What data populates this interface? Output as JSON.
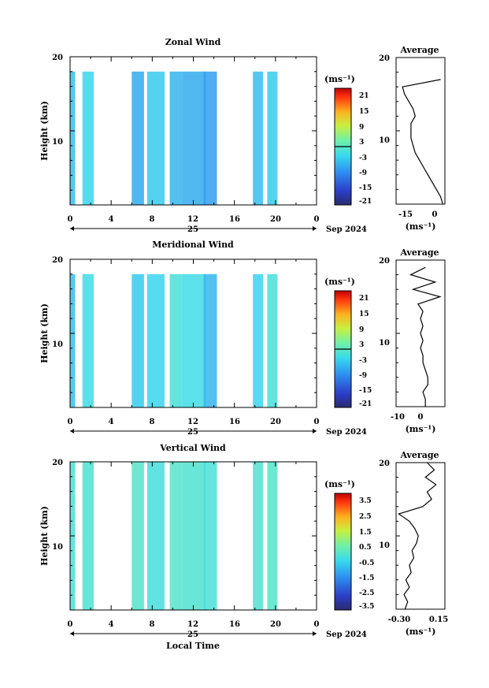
{
  "chart_data": [
    {
      "type": "heatmap",
      "title": "Zonal Wind",
      "ylabel": "Height (km)",
      "xlabel": "",
      "xlim": [
        0,
        24
      ],
      "ylim": [
        0,
        20
      ],
      "xticks": [
        "0",
        "4",
        "8",
        "12",
        "16",
        "20",
        "0"
      ],
      "yticks": [
        "20",
        "10"
      ],
      "date_day": "25",
      "date_month": "Sep 2024",
      "colorbar": {
        "unit": "(ms⁻¹)",
        "range": [
          -24,
          24
        ],
        "ticks": [
          "21",
          "15",
          "9",
          "3",
          "-3",
          "-9",
          "-15",
          "-21"
        ]
      },
      "time_blocks_hours": [
        [
          0,
          0.5
        ],
        [
          1.2,
          2.3
        ],
        [
          6,
          7.2
        ],
        [
          7.5,
          9.2
        ],
        [
          9.7,
          10.9
        ],
        [
          10.9,
          13.2
        ],
        [
          13,
          14.3
        ],
        [
          17.8,
          18.8
        ],
        [
          19.2,
          20.2
        ]
      ],
      "fill_values": [
        -6,
        -4,
        -8,
        -5,
        -7,
        -8,
        -9,
        -6,
        -5
      ],
      "average_profile": {
        "title": "Average",
        "xlabel": "(ms⁻¹)",
        "xlim": [
          -20,
          3
        ],
        "xticks": [
          "-15",
          "0"
        ],
        "yticks": [
          "20",
          "10"
        ],
        "height_km": [
          0,
          1,
          2,
          3,
          4,
          5,
          6,
          7,
          8,
          9,
          10,
          11,
          12,
          13,
          14,
          15,
          16,
          17
        ],
        "values": [
          2,
          1,
          -1,
          -3,
          -5,
          -7,
          -9,
          -11,
          -12,
          -13,
          -13,
          -13,
          -11,
          -12,
          -14,
          -16,
          -17,
          1
        ]
      }
    },
    {
      "type": "heatmap",
      "title": "Meridional Wind",
      "ylabel": "Height (km)",
      "xlabel": "",
      "xlim": [
        0,
        24
      ],
      "ylim": [
        0,
        20
      ],
      "xticks": [
        "0",
        "4",
        "8",
        "12",
        "16",
        "20",
        "0"
      ],
      "yticks": [
        "20",
        "10"
      ],
      "date_day": "25",
      "date_month": "Sep 2024",
      "colorbar": {
        "unit": "(ms⁻¹)",
        "range": [
          -24,
          24
        ],
        "ticks": [
          "21",
          "15",
          "9",
          "3",
          "-3",
          "-9",
          "-15",
          "-21"
        ]
      },
      "time_blocks_hours": [
        [
          0,
          0.5
        ],
        [
          1.2,
          2.3
        ],
        [
          6,
          7.2
        ],
        [
          7.5,
          9.2
        ],
        [
          9.7,
          10.9
        ],
        [
          10.9,
          13.2
        ],
        [
          13,
          14.3
        ],
        [
          17.8,
          18.8
        ],
        [
          19.2,
          20.2
        ]
      ],
      "fill_values": [
        -6,
        -3,
        -5,
        -4,
        -2,
        -3,
        -7,
        -4,
        -2
      ],
      "average_profile": {
        "title": "Average",
        "xlabel": "(ms⁻¹)",
        "xlim": [
          -12,
          8
        ],
        "xticks": [
          "-10",
          "0"
        ],
        "yticks": [
          "20",
          "10"
        ],
        "height_km": [
          0,
          1,
          2,
          3,
          4,
          5,
          6,
          7,
          8,
          9,
          10,
          11,
          12,
          13,
          14,
          15,
          16,
          17,
          18,
          19
        ],
        "values": [
          0,
          0,
          -1,
          1,
          1,
          0,
          -1,
          -1,
          -2,
          -1,
          -2,
          -1,
          -2,
          -1,
          -3,
          6,
          -5,
          4,
          -6,
          0
        ]
      }
    },
    {
      "type": "heatmap",
      "title": "Vertical Wind",
      "ylabel": "Height (km)",
      "xlabel": "Local Time",
      "xlim": [
        0,
        24
      ],
      "ylim": [
        0,
        20
      ],
      "xticks": [
        "0",
        "4",
        "8",
        "12",
        "16",
        "20",
        "0"
      ],
      "yticks": [
        "20",
        "10"
      ],
      "date_day": "25",
      "date_month": "Sep 2024",
      "colorbar": {
        "unit": "(ms⁻¹)",
        "range": [
          -4,
          4
        ],
        "ticks": [
          "3.5",
          "2.5",
          "1.5",
          "0.5",
          "-0.5",
          "-1.5",
          "-2.5",
          "-3.5"
        ]
      },
      "time_blocks_hours": [
        [
          0,
          0.5
        ],
        [
          1.2,
          2.3
        ],
        [
          6,
          7.2
        ],
        [
          7.5,
          9.2
        ],
        [
          9.7,
          10.9
        ],
        [
          10.9,
          13.2
        ],
        [
          13,
          14.3
        ],
        [
          17.8,
          18.8
        ],
        [
          19.2,
          20.2
        ]
      ],
      "fill_values": [
        -0.3,
        -0.2,
        -0.1,
        -0.4,
        -0.1,
        -0.2,
        -0.3,
        -0.2,
        -0.1
      ],
      "average_profile": {
        "title": "Average",
        "xlabel": "(ms⁻¹)",
        "xlim": [
          -0.35,
          0.2
        ],
        "xticks": [
          "-0.30",
          "0.15"
        ],
        "yticks": [
          "20",
          "10"
        ],
        "height_km": [
          0,
          1,
          2,
          3,
          4,
          5,
          6,
          7,
          8,
          9,
          10,
          11,
          12,
          13,
          14,
          15,
          16,
          17,
          18,
          19,
          20
        ],
        "values": [
          -0.25,
          -0.22,
          -0.26,
          -0.2,
          -0.24,
          -0.18,
          -0.2,
          -0.15,
          -0.17,
          -0.12,
          -0.1,
          -0.14,
          -0.2,
          -0.32,
          -0.05,
          0.05,
          0.0,
          0.1,
          -0.02,
          0.08,
          0.0
        ]
      }
    }
  ]
}
